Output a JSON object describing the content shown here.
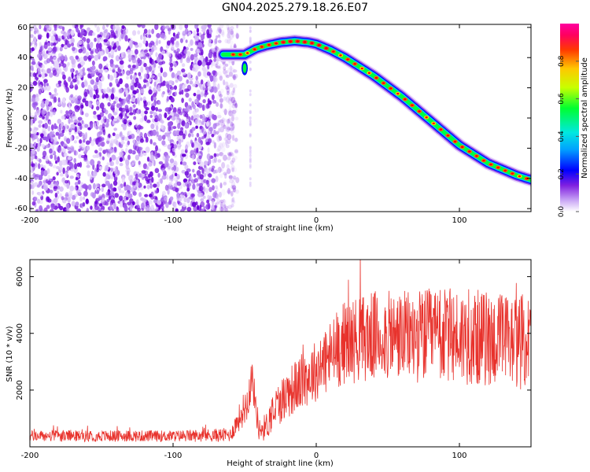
{
  "title": "GN04.2025.279.18.26.E07",
  "colors": {
    "snr_line": "#e8322c",
    "axis": "#000000",
    "background": "#ffffff"
  },
  "chart_data": [
    {
      "type": "heatmap",
      "name": "spectrogram",
      "xlabel": "Height of straight line (km)",
      "ylabel": "Frequency (Hz)",
      "xlim": [
        -200,
        150
      ],
      "ylim": [
        -62,
        62
      ],
      "xticks": [
        -200,
        -100,
        0,
        100
      ],
      "yticks": [
        60,
        40,
        20,
        0,
        -20,
        -40,
        -60
      ],
      "ridge": {
        "x": [
          -65,
          -50,
          -42,
          -35,
          -25,
          -15,
          -5,
          0,
          10,
          20,
          40,
          60,
          80,
          100,
          120,
          140,
          150
        ],
        "y": [
          42,
          42,
          46,
          48,
          50,
          51,
          50,
          49,
          45,
          40,
          28,
          14,
          -2,
          -18,
          -30,
          -38,
          -41
        ]
      },
      "noise_region": [
        -200,
        -55
      ],
      "colorbar": {
        "label": "Normalized spectral amplitude",
        "ticks": [
          0.0,
          0.2,
          0.4,
          0.6,
          0.8
        ],
        "tick_labels": [
          "0.0",
          "0.2",
          "0.4",
          "0.6",
          "0.8"
        ],
        "range": [
          0,
          1
        ]
      }
    },
    {
      "type": "line",
      "name": "snr",
      "xlabel": "Height of straight line (km)",
      "ylabel": "SNR (10 * v/v)",
      "xlim": [
        -200,
        150
      ],
      "ylim": [
        0,
        6600
      ],
      "xticks": [
        -200,
        -100,
        0,
        100
      ],
      "yticks": [
        2000,
        4000,
        6000
      ],
      "series": [
        {
          "name": "SNR",
          "envelope_x": [
            -200,
            -150,
            -100,
            -60,
            -48,
            -45,
            -40,
            -35,
            -30,
            -20,
            -10,
            0,
            10,
            20,
            40,
            60,
            80,
            100,
            120,
            150
          ],
          "envelope_mean": [
            380,
            380,
            380,
            420,
            1600,
            2500,
            600,
            700,
            1300,
            1900,
            2300,
            2700,
            3200,
            3700,
            3900,
            3900,
            3900,
            3900,
            3800,
            3700
          ],
          "envelope_amp": [
            200,
            200,
            200,
            250,
            700,
            700,
            400,
            500,
            700,
            900,
            1000,
            1100,
            1300,
            1500,
            1600,
            1600,
            1700,
            1700,
            1700,
            1700
          ]
        }
      ]
    }
  ]
}
